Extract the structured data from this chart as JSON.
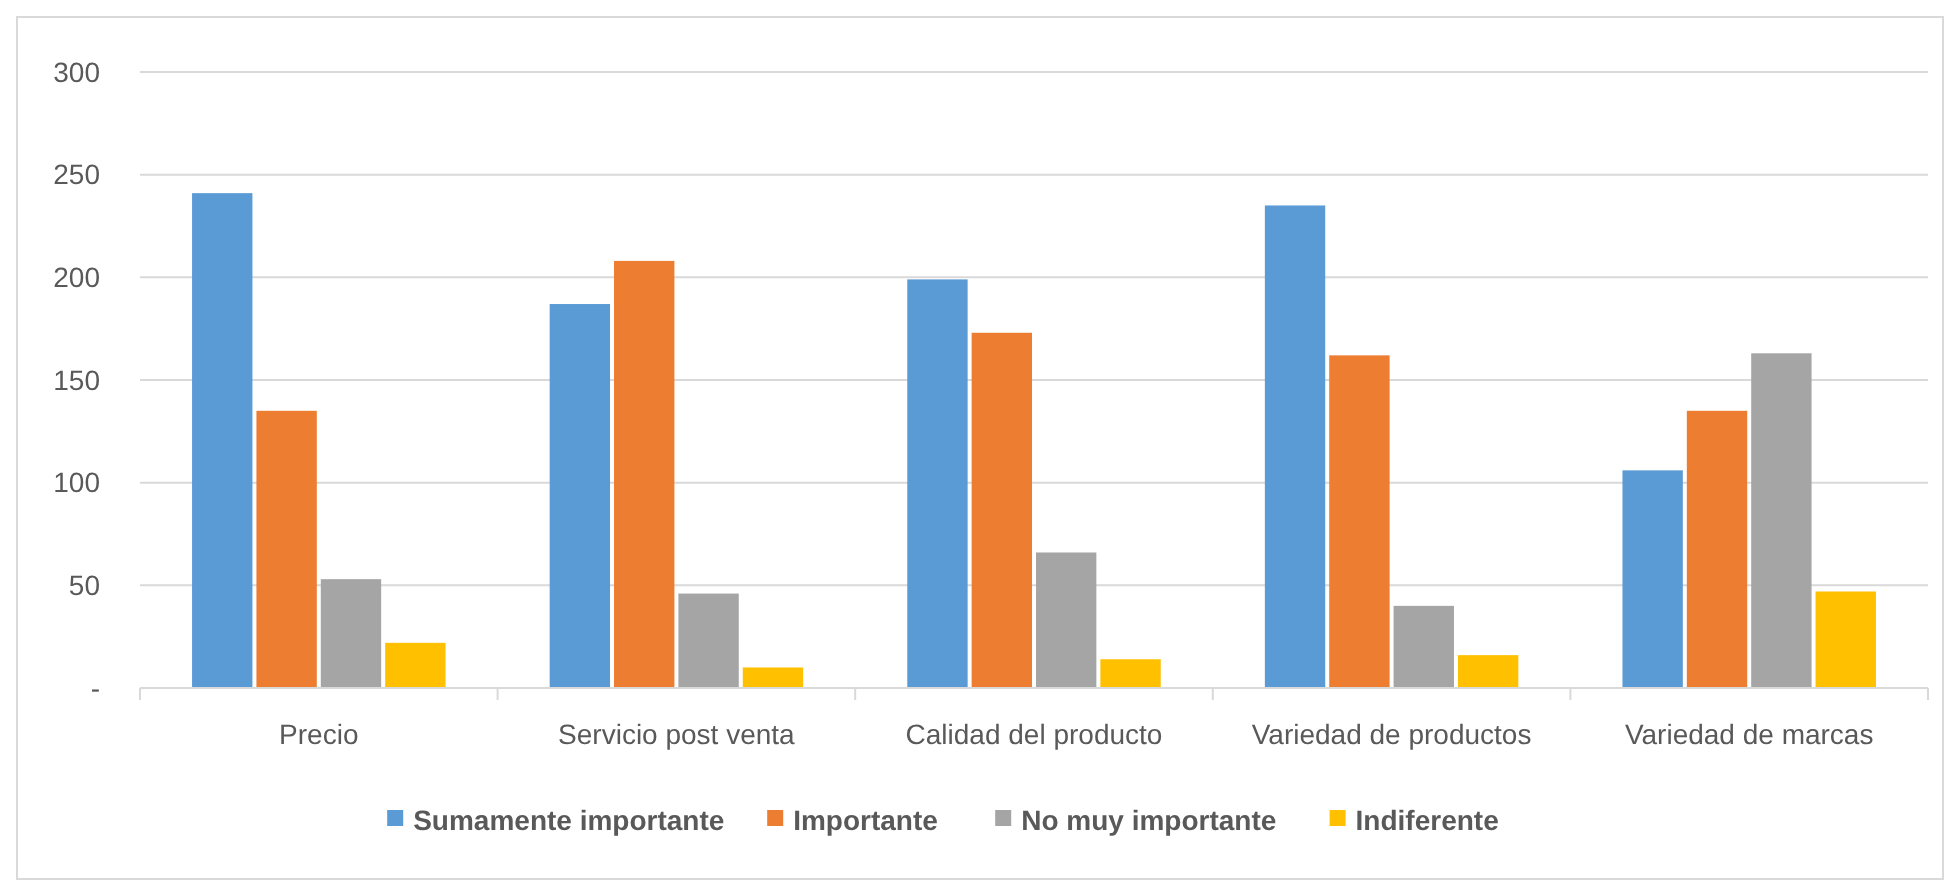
{
  "chart_data": {
    "type": "bar",
    "categories": [
      "Precio",
      "Servicio post venta",
      "Calidad del producto",
      "Variedad de productos",
      "Variedad de marcas"
    ],
    "series": [
      {
        "name": "Sumamente importante",
        "color": "#5b9bd5",
        "values": [
          241,
          187,
          199,
          235,
          106
        ]
      },
      {
        "name": "Importante",
        "color": "#ed7d31",
        "values": [
          135,
          208,
          173,
          162,
          135
        ]
      },
      {
        "name": "No muy importante",
        "color": "#a5a5a5",
        "values": [
          53,
          46,
          66,
          40,
          163
        ]
      },
      {
        "name": "Indiferente",
        "color": "#ffc000",
        "values": [
          22,
          10,
          14,
          16,
          47
        ]
      }
    ],
    "ylim": [
      0,
      300
    ],
    "yticks": [
      {
        "value": 0,
        "label": "-"
      },
      50,
      100,
      150,
      200,
      250,
      300
    ],
    "grid": "y",
    "legend": "bottom"
  }
}
